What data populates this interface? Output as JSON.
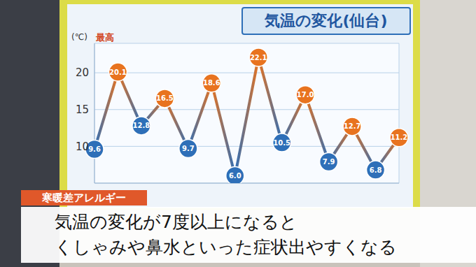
{
  "chart_data": {
    "type": "line",
    "title": "気温の変化(仙台)",
    "ylabel": "(℃)",
    "categories": [
      null,
      null,
      null,
      null,
      null,
      null,
      null,
      null,
      null,
      null,
      null,
      null,
      null,
      null
    ],
    "series": [
      {
        "name": "最高",
        "values": [
          9.6,
          20.1,
          12.8,
          16.5,
          9.7,
          18.6,
          6.0,
          22.1,
          10.5,
          17.0,
          7.9,
          12.7,
          6.8,
          11.2
        ],
        "value_labels": [
          "9.6",
          "20.1",
          "12.8",
          "16.5",
          "9.7",
          "18.6",
          "6.0",
          "22.1",
          "10.5",
          "17.0",
          "7.9",
          "12.7",
          "6.8",
          "11.2"
        ],
        "colors": [
          "#2e6fb8",
          "#e8731f",
          "#2e6fb8",
          "#e8731f",
          "#2e6fb8",
          "#e8731f",
          "#2e6fb8",
          "#e8731f",
          "#2e6fb8",
          "#e8731f",
          "#2e6fb8",
          "#e8731f",
          "#2e6fb8",
          "#e8731f"
        ],
        "marker": "circle"
      }
    ],
    "ylim": [
      5,
      24
    ],
    "yticks": [
      10,
      15,
      20
    ],
    "grid": true,
    "data_labels": true,
    "tick_labels": "y",
    "annotations": [
      "寒暖差アレルギー",
      "気温の変化が7度以上になると",
      "くしゃみや鼻水といった症状出やすくなる"
    ]
  }
}
